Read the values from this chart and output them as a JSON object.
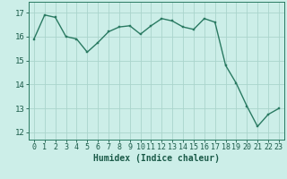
{
  "x": [
    0,
    1,
    2,
    3,
    4,
    5,
    6,
    7,
    8,
    9,
    10,
    11,
    12,
    13,
    14,
    15,
    16,
    17,
    18,
    19,
    20,
    21,
    22,
    23
  ],
  "y": [
    15.9,
    16.9,
    16.8,
    16.0,
    15.9,
    15.35,
    15.75,
    16.2,
    16.4,
    16.45,
    16.1,
    16.45,
    16.75,
    16.65,
    16.4,
    16.3,
    16.75,
    16.6,
    14.8,
    14.05,
    13.1,
    12.25,
    12.75,
    13.0
  ],
  "line_color": "#2a7a62",
  "marker_color": "#2a7a62",
  "bg_color": "#cceee8",
  "grid_color": "#aad4cc",
  "axis_color": "#2a7a62",
  "tick_color": "#1a5a48",
  "xlabel": "Humidex (Indice chaleur)",
  "ylabel_ticks": [
    12,
    13,
    14,
    15,
    16,
    17
  ],
  "ylim": [
    11.7,
    17.45
  ],
  "xlim": [
    -0.5,
    23.5
  ],
  "font_color": "#1a5a48",
  "tick_fontsize": 6.0,
  "xlabel_fontsize": 7.0
}
